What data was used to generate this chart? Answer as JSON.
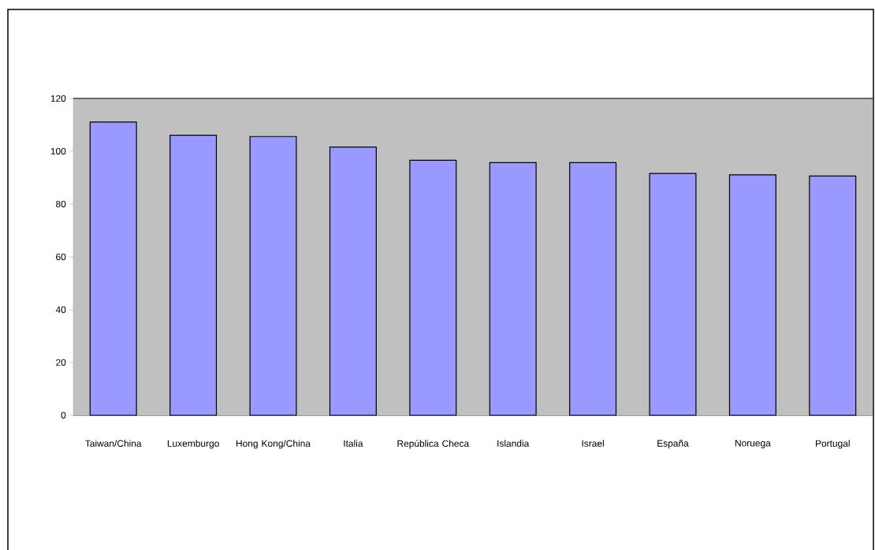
{
  "chart_data": {
    "type": "bar",
    "categories": [
      "Taiwan/China",
      "Luxemburgo",
      "Hong Kong/China",
      "Italia",
      "República Checa",
      "Islandia",
      "Israel",
      "España",
      "Noruega",
      "Portugal"
    ],
    "values": [
      111.1,
      106.1,
      105.6,
      101.6,
      96.6,
      95.7,
      95.7,
      91.6,
      91.1,
      90.6
    ],
    "color": "#9999ff",
    "ylim": [
      0,
      120
    ],
    "yticks": [
      0,
      20,
      40,
      60,
      80,
      100,
      120
    ],
    "grid": "y"
  }
}
